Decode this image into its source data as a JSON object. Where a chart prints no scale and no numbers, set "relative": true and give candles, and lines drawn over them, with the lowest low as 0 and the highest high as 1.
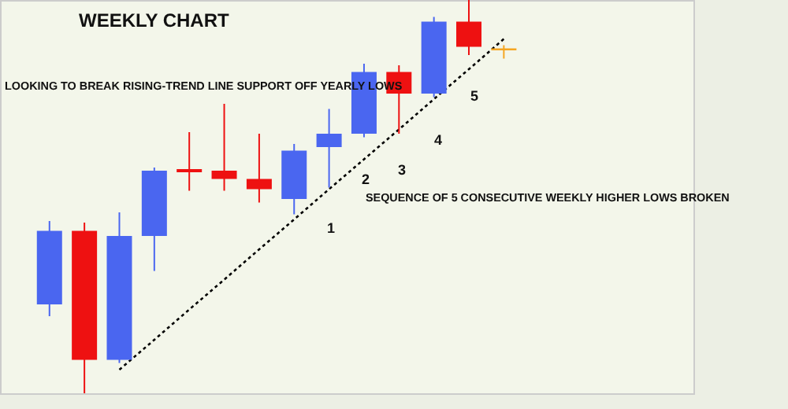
{
  "chart_data": {
    "type": "candlestick",
    "title": "WEEKLY CHART",
    "relative": true,
    "categories": [
      null,
      null,
      null,
      null,
      null,
      null,
      null,
      null,
      null,
      null,
      null,
      null,
      null,
      null
    ],
    "ohlc": [
      [
        0.226,
        0.438,
        0.196,
        0.413
      ],
      [
        0.413,
        0.434,
        0.0,
        0.085
      ],
      [
        0.085,
        0.46,
        0.077,
        0.4
      ],
      [
        0.4,
        0.574,
        0.311,
        0.566
      ],
      [
        0.57,
        0.664,
        0.515,
        0.562
      ],
      [
        0.566,
        0.736,
        0.515,
        0.545
      ],
      [
        0.545,
        0.66,
        0.485,
        0.519
      ],
      [
        0.494,
        0.634,
        0.455,
        0.617
      ],
      [
        0.626,
        0.723,
        0.523,
        0.66
      ],
      [
        0.66,
        0.838,
        0.651,
        0.817
      ],
      [
        0.817,
        0.834,
        0.66,
        0.762
      ],
      [
        0.762,
        0.957,
        0.753,
        0.945
      ],
      [
        0.945,
        1.0,
        0.86,
        0.881
      ],
      [
        0.877,
        0.885,
        0.851,
        0.872
      ]
    ],
    "colors": [
      "#4a66f0",
      "#ee1111",
      "#4a66f0",
      "#4a66f0",
      "#ee1111",
      "#ee1111",
      "#ee1111",
      "#4a66f0",
      "#4a66f0",
      "#4a66f0",
      "#ee1111",
      "#4a66f0",
      "#ee1111",
      "#f5a623"
    ],
    "series": [
      {
        "type": "line",
        "values": [
          null,
          null,
          0.06,
          0.136,
          0.213,
          0.289,
          0.366,
          0.442,
          0.519,
          0.595,
          0.671,
          0.748,
          0.824,
          0.901
        ],
        "color": "#000000",
        "line_style": "dotted"
      }
    ],
    "annotations": [
      "LOOKING TO BREAK RISING-TREND LINE SUPPORT OFF YEARLY LOWS",
      "SEQUENCE OF 5 CONSECUTIVE WEEKLY HIGHER LOWS BROKEN",
      "1",
      "2",
      "3",
      "4",
      "5"
    ]
  }
}
